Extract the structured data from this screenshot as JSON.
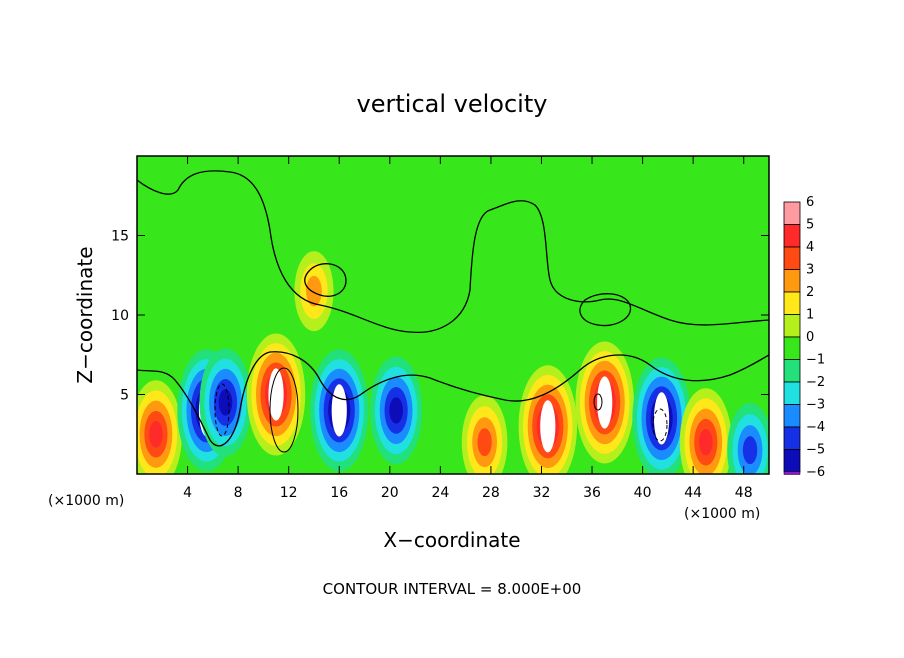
{
  "chart_data": {
    "type": "heatmap",
    "title": "vertical velocity",
    "xlabel": "X−coordinate",
    "ylabel": "Z−coordinate",
    "x_unit_note": "(×1000 m)",
    "x_unit_note_right": "(×1000 m)",
    "footer": "CONTOUR INTERVAL = 8.000E+00",
    "xlim": [
      0,
      50
    ],
    "ylim": [
      0,
      20
    ],
    "x_ticks": [
      4,
      8,
      12,
      16,
      20,
      24,
      28,
      32,
      36,
      40,
      44,
      48
    ],
    "x_tick_labels": [
      "4",
      "8",
      "12",
      "16",
      "20",
      "24",
      "28",
      "32",
      "36",
      "40",
      "44",
      "48"
    ],
    "y_ticks": [
      5,
      10,
      15
    ],
    "y_tick_labels": [
      "5",
      "10",
      "15"
    ],
    "colorbar": {
      "levels": [
        6,
        5,
        4,
        3,
        2,
        1,
        0,
        -1,
        -2,
        -3,
        -4,
        -5,
        -6
      ],
      "labels": [
        "6",
        "5",
        "4",
        "3",
        "2",
        "1",
        "0",
        "−1",
        "−2",
        "−3",
        "−4",
        "−5",
        "−6"
      ],
      "colors": [
        "#ff9aa0",
        "#ff2a2a",
        "#ff4a14",
        "#ff9a10",
        "#ffe81a",
        "#b6f01c",
        "#38e61c",
        "#22e07a",
        "#20e0e0",
        "#1a8cff",
        "#1630e6",
        "#0c0cb8",
        "#8c18c8"
      ]
    },
    "background_value": 0,
    "features": [
      {
        "sign": "positive",
        "x": 1.5,
        "z": 2.5,
        "peak": 5
      },
      {
        "sign": "negative",
        "x": 5.5,
        "z": 4,
        "peak": -6
      },
      {
        "sign": "negative",
        "x": 7,
        "z": 4.5,
        "peak": -5
      },
      {
        "sign": "positive",
        "x": 11,
        "z": 5,
        "peak": 6
      },
      {
        "sign": "negative",
        "x": 16,
        "z": 4,
        "peak": -6
      },
      {
        "sign": "negative",
        "x": 20.5,
        "z": 4,
        "peak": -5
      },
      {
        "sign": "positive",
        "x": 14,
        "z": 11.5,
        "peak": 3
      },
      {
        "sign": "positive",
        "x": 27.5,
        "z": 2,
        "peak": 4
      },
      {
        "sign": "positive",
        "x": 32.5,
        "z": 3,
        "peak": 6
      },
      {
        "sign": "positive",
        "x": 37,
        "z": 4.5,
        "peak": 6
      },
      {
        "sign": "negative",
        "x": 41.5,
        "z": 3.5,
        "peak": -6
      },
      {
        "sign": "positive",
        "x": 45,
        "z": 2,
        "peak": 5
      },
      {
        "sign": "negative",
        "x": 48.5,
        "z": 1.5,
        "peak": -4
      }
    ]
  }
}
